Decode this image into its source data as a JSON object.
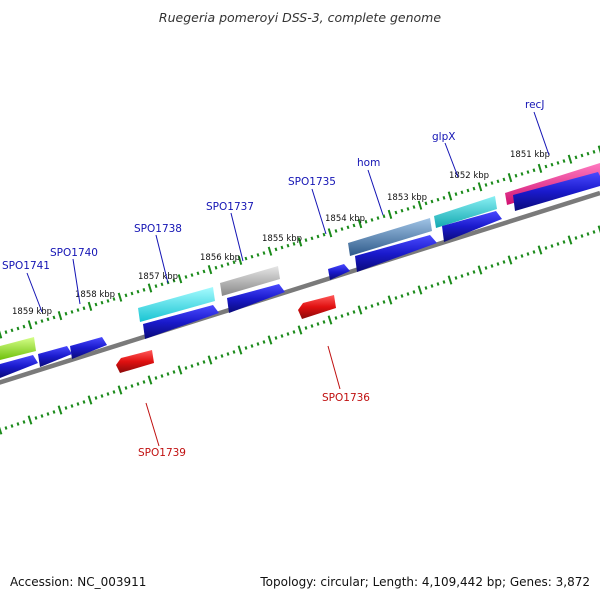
{
  "title": "Ruegeria pomeroyi DSS-3, complete genome",
  "footer": {
    "accession": "Accession: NC_003911",
    "summary": "Topology: circular; Length: 4,109,442 bp; Genes: 3,872"
  },
  "kbp_labels": [
    "1851 kbp",
    "1852 kbp",
    "1853 kbp",
    "1854 kbp",
    "1855 kbp",
    "1856 kbp",
    "1857 kbp",
    "1858 kbp",
    "1859 kbp"
  ],
  "gene_labels_forward": [
    "recJ",
    "glpX",
    "hom",
    "SPO1735",
    "SPO1737",
    "SPO1738",
    "SPO1740",
    "SPO1741"
  ],
  "gene_labels_reverse": [
    "SPO1736",
    "SPO1739"
  ],
  "colors": {
    "background": "#ffffff",
    "forward_gene": "#1a1acc",
    "reverse_gene": "#e01010",
    "backbone": "#808080",
    "tick": "#1a8a1a",
    "label_forward": "#1414b4",
    "label_reverse": "#c01010",
    "feature_magenta": "#ee1a90",
    "feature_teal": "#22c8d0",
    "feature_steelblue": "#4a7ab0",
    "feature_cyan": "#22e0ee",
    "feature_gray": "#a8a8a8",
    "feature_lime": "#9ae61a"
  }
}
